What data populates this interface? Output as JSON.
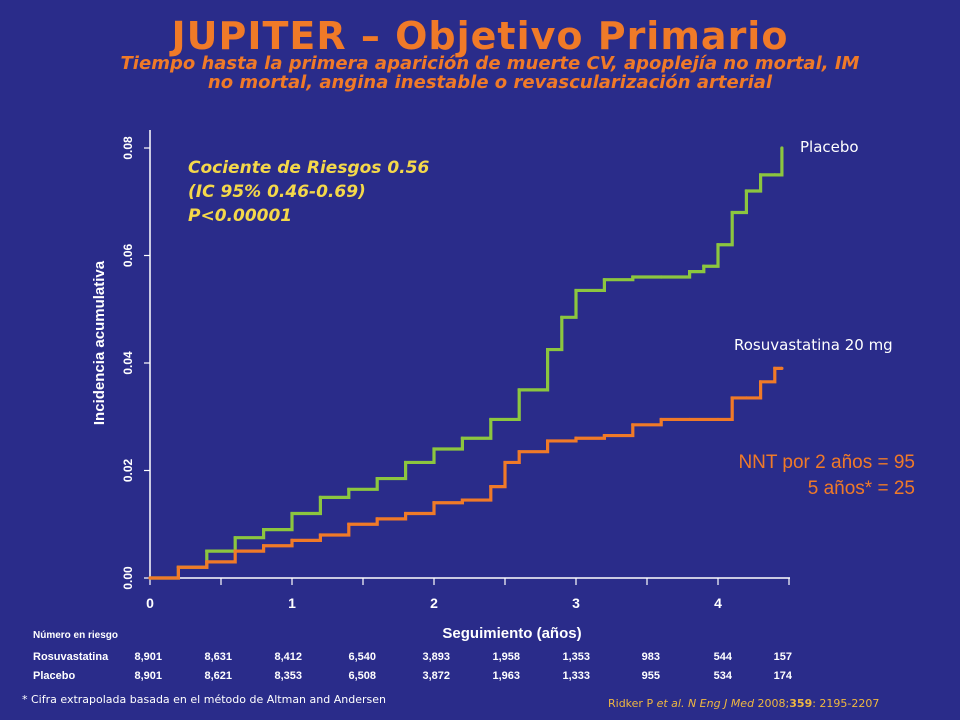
{
  "header": {
    "title": "JUPITER – Objetivo Primario",
    "subtitle_line1": "Tiempo hasta la primera aparición de muerte CV, apoplejía no mortal, IM",
    "subtitle_line2": "no mortal, angina inestable o revascularización arterial"
  },
  "annotations": {
    "hr_line1": "Cociente de Riesgos 0.56",
    "hr_line2": "(IC 95% 0.46-0.69)",
    "hr_line3": "P<0.00001",
    "nnt_line1": "NNT por 2 años  = 95",
    "nnt_line2": "5 años* = 25"
  },
  "colors": {
    "background": "#2a2c8a",
    "title": "#f07a28",
    "placebo": "#8cc63f",
    "rosuvastatina": "#f07a28",
    "hr_text": "#f4d84a",
    "citation": "#f0b840"
  },
  "chart_data": {
    "type": "line",
    "xlabel": "Seguimiento (años)",
    "ylabel": "Incidencia acumulativa",
    "xlim": [
      0,
      4.5
    ],
    "ylim": [
      0,
      0.08
    ],
    "xticks": [
      "0",
      "1",
      "2",
      "3",
      "4"
    ],
    "yticks": [
      "0.00",
      "0.02",
      "0.04",
      "0.06",
      "0.08"
    ],
    "series": [
      {
        "name": "Placebo",
        "x": [
          0,
          0.2,
          0.4,
          0.6,
          0.8,
          1.0,
          1.2,
          1.4,
          1.6,
          1.8,
          2.0,
          2.2,
          2.4,
          2.6,
          2.8,
          2.9,
          3.0,
          3.2,
          3.4,
          3.6,
          3.8,
          3.9,
          4.0,
          4.1,
          4.2,
          4.3,
          4.4,
          4.45
        ],
        "y": [
          0,
          0.002,
          0.005,
          0.0075,
          0.009,
          0.012,
          0.015,
          0.0165,
          0.0185,
          0.0215,
          0.024,
          0.026,
          0.0295,
          0.035,
          0.0425,
          0.0485,
          0.0535,
          0.0555,
          0.056,
          0.056,
          0.057,
          0.058,
          0.062,
          0.068,
          0.072,
          0.075,
          0.075,
          0.08
        ]
      },
      {
        "name": "Rosuvastatina 20 mg",
        "x": [
          0,
          0.2,
          0.4,
          0.6,
          0.8,
          1.0,
          1.2,
          1.4,
          1.6,
          1.8,
          2.0,
          2.2,
          2.4,
          2.5,
          2.6,
          2.8,
          3.0,
          3.2,
          3.4,
          3.6,
          3.8,
          4.0,
          4.1,
          4.2,
          4.3,
          4.4,
          4.45
        ],
        "y": [
          0,
          0.002,
          0.003,
          0.005,
          0.006,
          0.007,
          0.008,
          0.01,
          0.011,
          0.012,
          0.014,
          0.0145,
          0.017,
          0.0215,
          0.0235,
          0.0255,
          0.026,
          0.0265,
          0.0285,
          0.0295,
          0.0295,
          0.0295,
          0.0335,
          0.0335,
          0.0365,
          0.039,
          0.039
        ]
      }
    ],
    "series_labels": {
      "placebo": "Placebo",
      "rosuvastatina": "Rosuvastatina 20 mg"
    }
  },
  "risk_table": {
    "heading": "Número en riesgo",
    "rows": [
      {
        "label": "Rosuvastatina",
        "values": [
          "8,901",
          "8,631",
          "8,412",
          "6,540",
          "3,893",
          "1,958",
          "1,353",
          "983",
          "544",
          "157"
        ]
      },
      {
        "label": "Placebo",
        "values": [
          "8,901",
          "8,621",
          "8,353",
          "6,508",
          "3,872",
          "1,963",
          "1,333",
          "955",
          "534",
          "174"
        ]
      }
    ]
  },
  "footer": {
    "footnote": "* Cifra extrapolada basada en el método de Altman and Andersen",
    "citation_authors": "Ridker P ",
    "citation_etal": "et al",
    "citation_journal": ". N Eng J Med",
    "citation_year": " 2008;",
    "citation_volume": "359",
    "citation_pages": ": 2195-2207"
  }
}
